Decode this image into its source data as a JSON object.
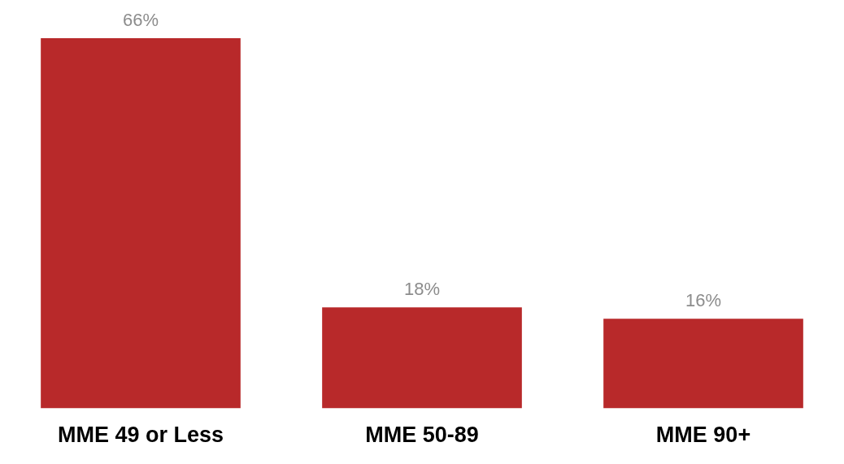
{
  "chart_data": {
    "type": "bar",
    "categories": [
      "MME 49 or Less",
      "MME 50-89",
      "MME 90+"
    ],
    "values": [
      66,
      18,
      16
    ],
    "color": "#b8292a",
    "value_labels": [
      "66%",
      "18%",
      "16%"
    ],
    "grid": false,
    "legend": false
  }
}
